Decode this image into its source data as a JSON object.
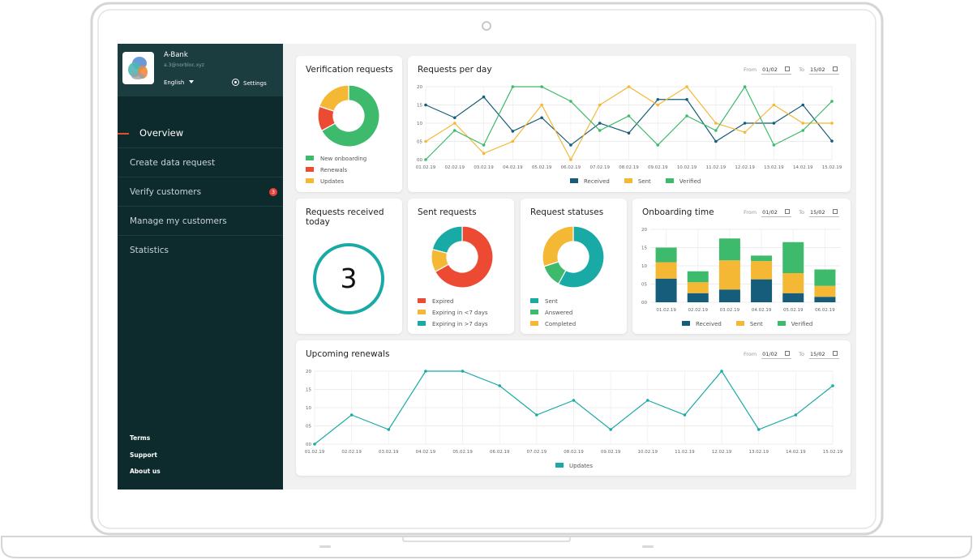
{
  "colors": {
    "green": "#3dba6b",
    "red": "#ec4a33",
    "yellow": "#f5b835",
    "teal": "#19aaa5",
    "navy": "#155d7a"
  },
  "sidebar": {
    "bank_name": "A-Bank",
    "email": "a.3@norbloc.xyz",
    "language": "English",
    "settings_label": "Settings",
    "settings_icon": "gear-icon",
    "items": [
      {
        "label": "Overview",
        "active": true
      },
      {
        "label": "Create data request"
      },
      {
        "label": "Verify customers",
        "badge": "3"
      },
      {
        "label": "Manage my customers"
      },
      {
        "label": "Statistics"
      }
    ],
    "footer": [
      "Terms",
      "Support",
      "About us"
    ]
  },
  "verification": {
    "title": "Verification requests",
    "legend": [
      "New onboarding",
      "Renewals",
      "Updates"
    ],
    "chart_data": {
      "type": "pie",
      "labels": [
        "New onboarding",
        "Renewals",
        "Updates"
      ],
      "values": [
        67,
        13,
        20
      ],
      "colors": [
        "#3dba6b",
        "#ec4a33",
        "#f5b835"
      ]
    }
  },
  "per_day": {
    "title": "Requests per day",
    "from_label": "From",
    "from_value": "01/02",
    "to_label": "To",
    "to_value": "15/02",
    "chart_data": {
      "type": "line",
      "x": [
        "01.02.19",
        "02.02.19",
        "03.02.19",
        "04.02.19",
        "05.02.19",
        "06.02.19",
        "07.02.19",
        "08.02.19",
        "09.02.19",
        "10.02.19",
        "11.02.19",
        "12.02.19",
        "13.02.19",
        "14.02.19",
        "15.02.19"
      ],
      "ylim": [
        0,
        20
      ],
      "yticks": [
        "00",
        "05",
        "10",
        "15",
        "20"
      ],
      "series": [
        {
          "name": "Received",
          "color": "#155d7a",
          "values": [
            15,
            11.5,
            17.2,
            7.8,
            11.5,
            4,
            10,
            7.3,
            16.5,
            16.5,
            5,
            10,
            10,
            15,
            5.1
          ]
        },
        {
          "name": "Sent",
          "color": "#f5b835",
          "values": [
            5,
            10,
            1.7,
            5,
            15,
            0,
            15,
            20,
            15,
            20,
            10,
            7.5,
            15,
            10,
            10
          ]
        },
        {
          "name": "Verified",
          "color": "#3dba6b",
          "values": [
            0,
            8,
            4,
            20,
            20,
            16,
            8,
            12,
            4,
            12,
            8,
            20,
            4,
            8,
            16
          ]
        }
      ]
    }
  },
  "received_today": {
    "title": "Requests received today",
    "value": "3"
  },
  "sent_requests": {
    "title": "Sent requests",
    "legend": [
      "Expired",
      "Expiring in <7 days",
      "Expiring in >7 days"
    ],
    "chart_data": {
      "type": "pie",
      "labels": [
        "Expired",
        "Expiring in <7 days",
        "Expiring in >7 days"
      ],
      "values": [
        67,
        12,
        21
      ],
      "colors": [
        "#ec4a33",
        "#f5b835",
        "#19aaa5"
      ]
    }
  },
  "statuses": {
    "title": "Request statuses",
    "legend": [
      "Sent",
      "Answered",
      "Completed"
    ],
    "chart_data": {
      "type": "pie",
      "labels": [
        "Sent",
        "Answered",
        "Completed"
      ],
      "values": [
        58,
        12,
        30
      ],
      "colors": [
        "#19aaa5",
        "#3dba6b",
        "#f5b835"
      ]
    }
  },
  "onboarding": {
    "title": "Onboarding time",
    "from_label": "From",
    "from_value": "01/02",
    "to_label": "To",
    "to_value": "15/02",
    "chart_data": {
      "type": "bar",
      "categories": [
        "01.02.19",
        "02.02.19",
        "03.02.19",
        "04.02.19",
        "05.02.19",
        "06.02.19"
      ],
      "ylim": [
        0,
        20
      ],
      "yticks": [
        "00",
        "05",
        "10",
        "15",
        "20"
      ],
      "series": [
        {
          "name": "Received",
          "color": "#155d7a",
          "values": [
            6.5,
            2.5,
            3.5,
            6.3,
            2.5,
            1.5
          ]
        },
        {
          "name": "Sent",
          "color": "#f5b835",
          "values": [
            4.5,
            3,
            8,
            5,
            5.5,
            3
          ]
        },
        {
          "name": "Verified",
          "color": "#3dba6b",
          "values": [
            4,
            3,
            6,
            1.5,
            8.5,
            4.5
          ]
        }
      ]
    }
  },
  "renewals": {
    "title": "Upcoming renewals",
    "from_label": "From",
    "from_value": "01/02",
    "to_label": "To",
    "to_value": "15/02",
    "chart_data": {
      "type": "line",
      "x": [
        "01.02.19",
        "02.02.19",
        "03.02.19",
        "04.02.19",
        "05.02.19",
        "06.02.19",
        "07.02.19",
        "08.02.19",
        "09.02.19",
        "10.02.19",
        "11.02.19",
        "12.02.19",
        "13.02.19",
        "14.02.19",
        "15.02.19"
      ],
      "ylim": [
        0,
        20
      ],
      "yticks": [
        "00",
        "05",
        "10",
        "15",
        "20"
      ],
      "series": [
        {
          "name": "Updates",
          "color": "#19aaa5",
          "values": [
            0,
            8,
            4,
            20,
            20,
            16,
            8,
            12,
            4,
            12,
            8,
            20,
            4,
            8,
            16
          ]
        }
      ]
    }
  }
}
